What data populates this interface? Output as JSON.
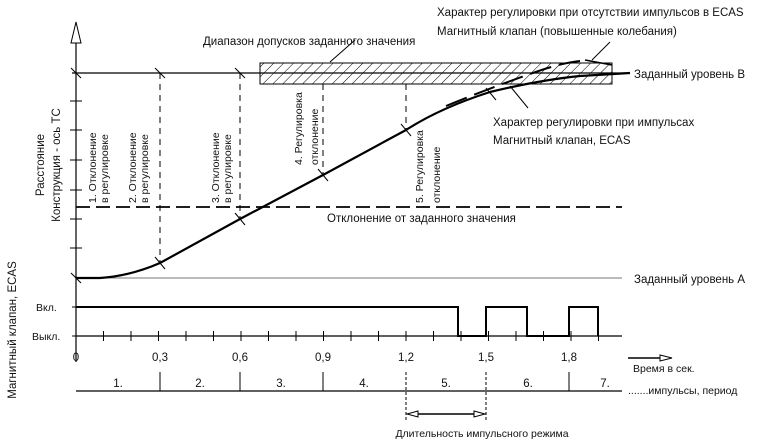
{
  "title_tolerance": "Диапазон допусков заданного значения",
  "no_pulse_label": [
    "Характер регулировки при отсутствии импульсов в ECAS",
    "Магнитный клапан (повышенные колебания)"
  ],
  "pulse_label": [
    "Характер регулировки при импульсах",
    "Магнитный клапан, ECAS"
  ],
  "level_b": "Заданный уровень B",
  "level_a": "Заданный уровень A",
  "deviation": "Отклонение от заданного значения",
  "y_axis_label": [
    "Расстояние",
    "Конструкция - ось ТС"
  ],
  "valve_axis_label": "Магнитный клапан, ECAS",
  "phase_labels": [
    [
      "1. Отклонение",
      "в регулировке"
    ],
    [
      "2. Отклонение",
      "в регулировке"
    ],
    [
      "3. Отклонение",
      "в регулировке"
    ],
    [
      "4. Регулировка",
      "отклонение"
    ],
    [
      "5. Регулировка",
      "отклонение"
    ]
  ],
  "on_label": "Вкл.",
  "off_label": "Выкл.",
  "time_ticks": [
    "0",
    "0,3",
    "0,6",
    "0,9",
    "1,2",
    "1,5",
    "1,8"
  ],
  "time_label": "Время в сек.",
  "periods": [
    "1.",
    "2.",
    "3.",
    "4.",
    "5.",
    "6.",
    "7."
  ],
  "period_label": ".......импульсы, период",
  "pulse_duration": "Длительность импульсного режима"
}
